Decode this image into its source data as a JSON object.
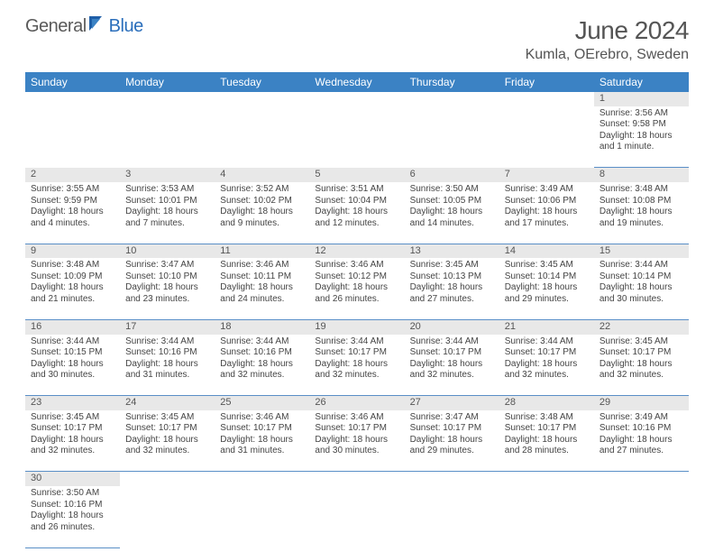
{
  "brand": {
    "part1": "General",
    "part2": "Blue"
  },
  "title": "June 2024",
  "location": "Kumla, OErebro, Sweden",
  "style": {
    "header_bg": "#3b82c4",
    "header_fg": "#ffffff",
    "daynum_bg": "#e8e8e8",
    "border_color": "#5a8fc7",
    "title_color": "#555555",
    "text_color": "#444444",
    "font_family": "Arial, Helvetica, sans-serif",
    "title_fontsize_pt": 21,
    "location_fontsize_pt": 12,
    "th_fontsize_pt": 9,
    "cell_fontsize_pt": 7.5
  },
  "weekdays": [
    "Sunday",
    "Monday",
    "Tuesday",
    "Wednesday",
    "Thursday",
    "Friday",
    "Saturday"
  ],
  "weeks": [
    [
      null,
      null,
      null,
      null,
      null,
      null,
      {
        "n": "1",
        "sr": "Sunrise: 3:56 AM",
        "ss": "Sunset: 9:58 PM",
        "dl": "Daylight: 18 hours and 1 minute."
      }
    ],
    [
      {
        "n": "2",
        "sr": "Sunrise: 3:55 AM",
        "ss": "Sunset: 9:59 PM",
        "dl": "Daylight: 18 hours and 4 minutes."
      },
      {
        "n": "3",
        "sr": "Sunrise: 3:53 AM",
        "ss": "Sunset: 10:01 PM",
        "dl": "Daylight: 18 hours and 7 minutes."
      },
      {
        "n": "4",
        "sr": "Sunrise: 3:52 AM",
        "ss": "Sunset: 10:02 PM",
        "dl": "Daylight: 18 hours and 9 minutes."
      },
      {
        "n": "5",
        "sr": "Sunrise: 3:51 AM",
        "ss": "Sunset: 10:04 PM",
        "dl": "Daylight: 18 hours and 12 minutes."
      },
      {
        "n": "6",
        "sr": "Sunrise: 3:50 AM",
        "ss": "Sunset: 10:05 PM",
        "dl": "Daylight: 18 hours and 14 minutes."
      },
      {
        "n": "7",
        "sr": "Sunrise: 3:49 AM",
        "ss": "Sunset: 10:06 PM",
        "dl": "Daylight: 18 hours and 17 minutes."
      },
      {
        "n": "8",
        "sr": "Sunrise: 3:48 AM",
        "ss": "Sunset: 10:08 PM",
        "dl": "Daylight: 18 hours and 19 minutes."
      }
    ],
    [
      {
        "n": "9",
        "sr": "Sunrise: 3:48 AM",
        "ss": "Sunset: 10:09 PM",
        "dl": "Daylight: 18 hours and 21 minutes."
      },
      {
        "n": "10",
        "sr": "Sunrise: 3:47 AM",
        "ss": "Sunset: 10:10 PM",
        "dl": "Daylight: 18 hours and 23 minutes."
      },
      {
        "n": "11",
        "sr": "Sunrise: 3:46 AM",
        "ss": "Sunset: 10:11 PM",
        "dl": "Daylight: 18 hours and 24 minutes."
      },
      {
        "n": "12",
        "sr": "Sunrise: 3:46 AM",
        "ss": "Sunset: 10:12 PM",
        "dl": "Daylight: 18 hours and 26 minutes."
      },
      {
        "n": "13",
        "sr": "Sunrise: 3:45 AM",
        "ss": "Sunset: 10:13 PM",
        "dl": "Daylight: 18 hours and 27 minutes."
      },
      {
        "n": "14",
        "sr": "Sunrise: 3:45 AM",
        "ss": "Sunset: 10:14 PM",
        "dl": "Daylight: 18 hours and 29 minutes."
      },
      {
        "n": "15",
        "sr": "Sunrise: 3:44 AM",
        "ss": "Sunset: 10:14 PM",
        "dl": "Daylight: 18 hours and 30 minutes."
      }
    ],
    [
      {
        "n": "16",
        "sr": "Sunrise: 3:44 AM",
        "ss": "Sunset: 10:15 PM",
        "dl": "Daylight: 18 hours and 30 minutes."
      },
      {
        "n": "17",
        "sr": "Sunrise: 3:44 AM",
        "ss": "Sunset: 10:16 PM",
        "dl": "Daylight: 18 hours and 31 minutes."
      },
      {
        "n": "18",
        "sr": "Sunrise: 3:44 AM",
        "ss": "Sunset: 10:16 PM",
        "dl": "Daylight: 18 hours and 32 minutes."
      },
      {
        "n": "19",
        "sr": "Sunrise: 3:44 AM",
        "ss": "Sunset: 10:17 PM",
        "dl": "Daylight: 18 hours and 32 minutes."
      },
      {
        "n": "20",
        "sr": "Sunrise: 3:44 AM",
        "ss": "Sunset: 10:17 PM",
        "dl": "Daylight: 18 hours and 32 minutes."
      },
      {
        "n": "21",
        "sr": "Sunrise: 3:44 AM",
        "ss": "Sunset: 10:17 PM",
        "dl": "Daylight: 18 hours and 32 minutes."
      },
      {
        "n": "22",
        "sr": "Sunrise: 3:45 AM",
        "ss": "Sunset: 10:17 PM",
        "dl": "Daylight: 18 hours and 32 minutes."
      }
    ],
    [
      {
        "n": "23",
        "sr": "Sunrise: 3:45 AM",
        "ss": "Sunset: 10:17 PM",
        "dl": "Daylight: 18 hours and 32 minutes."
      },
      {
        "n": "24",
        "sr": "Sunrise: 3:45 AM",
        "ss": "Sunset: 10:17 PM",
        "dl": "Daylight: 18 hours and 32 minutes."
      },
      {
        "n": "25",
        "sr": "Sunrise: 3:46 AM",
        "ss": "Sunset: 10:17 PM",
        "dl": "Daylight: 18 hours and 31 minutes."
      },
      {
        "n": "26",
        "sr": "Sunrise: 3:46 AM",
        "ss": "Sunset: 10:17 PM",
        "dl": "Daylight: 18 hours and 30 minutes."
      },
      {
        "n": "27",
        "sr": "Sunrise: 3:47 AM",
        "ss": "Sunset: 10:17 PM",
        "dl": "Daylight: 18 hours and 29 minutes."
      },
      {
        "n": "28",
        "sr": "Sunrise: 3:48 AM",
        "ss": "Sunset: 10:17 PM",
        "dl": "Daylight: 18 hours and 28 minutes."
      },
      {
        "n": "29",
        "sr": "Sunrise: 3:49 AM",
        "ss": "Sunset: 10:16 PM",
        "dl": "Daylight: 18 hours and 27 minutes."
      }
    ],
    [
      {
        "n": "30",
        "sr": "Sunrise: 3:50 AM",
        "ss": "Sunset: 10:16 PM",
        "dl": "Daylight: 18 hours and 26 minutes."
      },
      null,
      null,
      null,
      null,
      null,
      null
    ]
  ]
}
